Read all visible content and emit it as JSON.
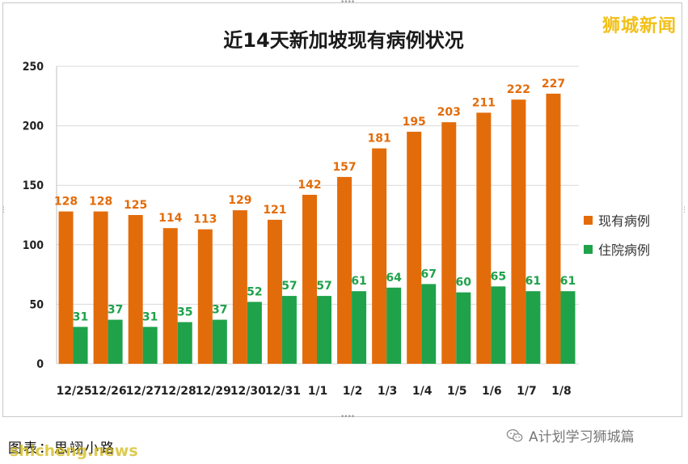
{
  "title": "近14天新加坡现有病例状况",
  "brand": "狮城新闻",
  "caption": "图表：思翊小路",
  "watermark_left": "shicheng.news",
  "watermark_right": "A计划学习狮城篇",
  "icons": {
    "watermark": "wechat-icon"
  },
  "colors": {
    "current": "#e36c0a",
    "hospital": "#1fa24a",
    "grid": "#d9d9d9"
  },
  "chart_data": {
    "type": "bar",
    "title": "近14天新加坡现有病例状况",
    "categories": [
      "12/25",
      "12/26",
      "12/27",
      "12/28",
      "12/29",
      "12/30",
      "12/31",
      "1/1",
      "1/2",
      "1/3",
      "1/4",
      "1/5",
      "1/6",
      "1/7",
      "1/8"
    ],
    "series": [
      {
        "name": "现有病例",
        "values": [
          128,
          128,
          125,
          114,
          113,
          129,
          121,
          142,
          157,
          181,
          195,
          203,
          211,
          222,
          227
        ]
      },
      {
        "name": "住院病例",
        "values": [
          31,
          37,
          31,
          35,
          37,
          52,
          57,
          57,
          61,
          64,
          67,
          60,
          65,
          61,
          61
        ]
      }
    ],
    "yticks": [
      0,
      50,
      100,
      150,
      200,
      250
    ],
    "ylim": [
      0,
      250
    ],
    "grid": true,
    "legend": "right"
  }
}
